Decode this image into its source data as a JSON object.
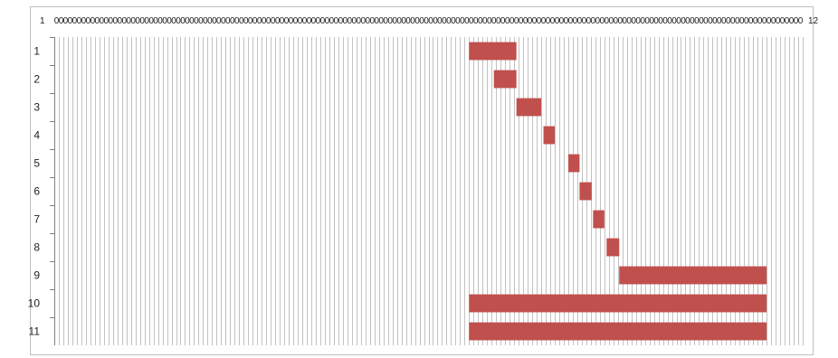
{
  "chart_data": {
    "type": "bar",
    "orientation": "horizontal-gantt",
    "title": "",
    "xlabel": "",
    "ylabel": "",
    "categories": [
      "1",
      "2",
      "3",
      "4",
      "5",
      "6",
      "7",
      "8",
      "9",
      "10",
      "11"
    ],
    "x_tick_count": 166,
    "x_tick_text_first": "1",
    "x_tick_text_last": "12",
    "xlim": [
      0,
      166
    ],
    "tasks": [
      {
        "label": "1",
        "start": 92.0,
        "end": 102.5
      },
      {
        "label": "2",
        "start": 97.5,
        "end": 102.5
      },
      {
        "label": "3",
        "start": 102.5,
        "end": 108.0
      },
      {
        "label": "4",
        "start": 108.5,
        "end": 111.0
      },
      {
        "label": "5",
        "start": 114.0,
        "end": 116.5
      },
      {
        "label": "6",
        "start": 116.5,
        "end": 119.2
      },
      {
        "label": "7",
        "start": 119.5,
        "end": 122.0
      },
      {
        "label": "8",
        "start": 122.5,
        "end": 125.3
      },
      {
        "label": "9",
        "start": 125.3,
        "end": 158.0
      },
      {
        "label": "10",
        "start": 92.0,
        "end": 158.0
      },
      {
        "label": "11",
        "start": 92.0,
        "end": 158.0
      }
    ],
    "bar_color": "#c0504d",
    "grid": true,
    "legend": "none"
  }
}
